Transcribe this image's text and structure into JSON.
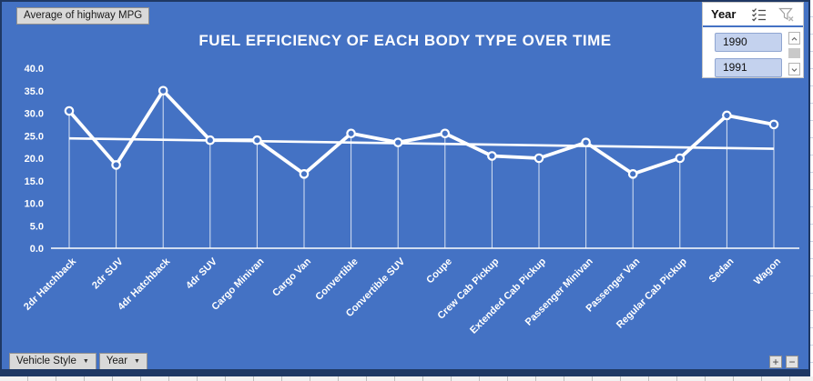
{
  "chart_data": {
    "type": "line",
    "title": "FUEL EFFICIENCY OF EACH BODY TYPE OVER TIME",
    "value_field": "Average of highway MPG",
    "categories": [
      "2dr Hatchback",
      "2dr SUV",
      "4dr Hatchback",
      "4dr SUV",
      "Cargo Minivan",
      "Cargo Van",
      "Convertible",
      "Convertible SUV",
      "Coupe",
      "Crew Cab Pickup",
      "Extended Cab Pickup",
      "Passenger Minivan",
      "Passenger Van",
      "Regular Cab Pickup",
      "Sedan",
      "Wagon"
    ],
    "series": [
      {
        "name": "Average of highway MPG",
        "values": [
          30.5,
          18.5,
          35.0,
          24.0,
          24.0,
          16.5,
          25.5,
          23.5,
          25.5,
          20.5,
          20.0,
          23.5,
          16.5,
          20.0,
          29.5,
          27.5
        ]
      }
    ],
    "trendline": {
      "type": "linear",
      "start": 24.4,
      "end": 22.1
    },
    "y_axis": {
      "min": 0,
      "max": 40,
      "step": 5,
      "ticks": [
        "40.0",
        "35.0",
        "30.0",
        "25.0",
        "20.0",
        "15.0",
        "10.0",
        "5.0",
        "0.0"
      ]
    },
    "x_label_rotation": -45,
    "legend": "none",
    "grid": "off",
    "marker": "circle",
    "drop_lines": true,
    "colors": {
      "background": "#4472C4",
      "series": "#FFFFFF",
      "text": "#FFFFFF",
      "frame": "#1F3864"
    }
  },
  "pivot_buttons": {
    "value_button": "Average of highway MPG",
    "axis_fields": [
      {
        "label": "Vehicle Style"
      },
      {
        "label": "Year"
      }
    ],
    "expand_label": "+",
    "collapse_label": "−"
  },
  "slicer": {
    "title": "Year",
    "items": [
      {
        "label": "1990",
        "selected": true
      },
      {
        "label": "1991",
        "selected": true
      }
    ]
  }
}
